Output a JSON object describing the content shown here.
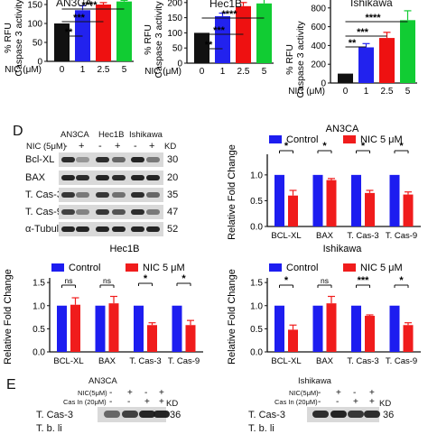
{
  "colors": {
    "ctrl": "#1d1df0",
    "nic5": "#f01c1c",
    "nic0": "#111111",
    "nic1": "#2222ee",
    "nic25": "#ee1111",
    "nic5b": "#11cc33",
    "axis": "#111111",
    "blot_bg": "#d9d9d9",
    "band": "#1a1a1a"
  },
  "caspase_panels": {
    "ylabel_a": "% RFU",
    "ylabel_b": "Caspase 3 activity",
    "xlabel": "NIC (μM)",
    "categories": [
      "0",
      "1",
      "2.5",
      "5"
    ]
  },
  "panel_d": {
    "letter": "D"
  },
  "panel_e": {
    "letter": "E"
  },
  "blot_d": {
    "header_groups": [
      "AN3CA",
      "Hec1B",
      "Ishikawa"
    ],
    "nic_label": "NIC (5μM)",
    "lane_signs": [
      "-",
      "+",
      "-",
      "+",
      "-",
      "+"
    ],
    "kd_label": "KD",
    "proteins": [
      "Bcl-XL",
      "BAX",
      "T. Cas-3",
      "T. Cas-9",
      "α-Tubulin"
    ],
    "kd_values": [
      "30",
      "20",
      "35",
      "47",
      "52"
    ]
  },
  "fold_common": {
    "ylabel": "Relative Fold Change",
    "legend_control": "Control",
    "legend_nic": "NIC 5 μM",
    "xcats": [
      "BCL-XL",
      "BAX",
      "T. Cas-3",
      "T. Cas-9"
    ]
  },
  "blot_e": {
    "left_title": "AN3CA",
    "right_title": "Ishikawa",
    "row1_label": "NIC(5μM)",
    "row2_label": "Cas In (20μM)",
    "row1_signs": [
      "-",
      "+",
      "-",
      "+"
    ],
    "row2_signs": [
      "-",
      "-",
      "+",
      "+"
    ],
    "kd_label": "KD",
    "protein": "T. Cas-3",
    "kd_value": "36",
    "protein_cut": "T. b. li"
  },
  "chart_data": [
    {
      "type": "bar",
      "title": "AN3CA",
      "xlabel": "NIC (μM)",
      "ylabel": "% RFU Caspase 3 activity",
      "categories": [
        "0",
        "1",
        "2.5",
        "5"
      ],
      "values": [
        100,
        135,
        150,
        158
      ],
      "errors": [
        0,
        12,
        5,
        3
      ],
      "ylim": [
        0,
        200
      ],
      "yticks_visible": [
        "0",
        "50",
        "100",
        "150"
      ],
      "significance": [
        "**",
        "***",
        "****"
      ]
    },
    {
      "type": "bar",
      "title": "Hec1B",
      "xlabel": "NIC (μM)",
      "ylabel": "% RFU Caspase 3 activity",
      "categories": [
        "0",
        "1",
        "2.5",
        "5"
      ],
      "values": [
        100,
        155,
        188,
        197
      ],
      "errors": [
        0,
        10,
        12,
        20
      ],
      "ylim": [
        0,
        250
      ],
      "yticks_visible": [
        "0",
        "50",
        "100",
        "150",
        "200"
      ],
      "significance": [
        "**",
        "***",
        "****"
      ]
    },
    {
      "type": "bar",
      "title": "Ishikawa",
      "xlabel": "NIC (μM)",
      "ylabel": "% RFU Caspase 3 activity",
      "categories": [
        "0",
        "1",
        "2.5",
        "5"
      ],
      "values": [
        100,
        380,
        480,
        670
      ],
      "errors": [
        0,
        40,
        60,
        100
      ],
      "ylim": [
        0,
        1000
      ],
      "yticks_visible": [
        "0",
        "200",
        "400",
        "600",
        "800"
      ],
      "significance": [
        "**",
        "***",
        "****"
      ]
    },
    {
      "type": "bar",
      "title": "AN3CA",
      "ylabel": "Relative Fold Change",
      "categories": [
        "BCL-XL",
        "BAX",
        "T. Cas-3",
        "T. Cas-9"
      ],
      "series": [
        {
          "name": "Control",
          "values": [
            1,
            1,
            1,
            1
          ],
          "errors": [
            0,
            0,
            0,
            0
          ]
        },
        {
          "name": "NIC 5 μM",
          "values": [
            0.6,
            0.9,
            0.65,
            0.62
          ],
          "errors": [
            0.1,
            0.03,
            0.05,
            0.05
          ]
        }
      ],
      "ylim": [
        0,
        1.4
      ],
      "yticks": [
        "0.0",
        "0.5",
        "1.0"
      ],
      "significance": [
        "*",
        "*",
        "*",
        "*"
      ]
    },
    {
      "type": "bar",
      "title": "Hec1B",
      "ylabel": "Relative Fold Change",
      "categories": [
        "BCL-XL",
        "BAX",
        "T. Cas-3",
        "T. Cas-9"
      ],
      "series": [
        {
          "name": "Control",
          "values": [
            1,
            1,
            1,
            1
          ],
          "errors": [
            0,
            0,
            0,
            0
          ]
        },
        {
          "name": "NIC 5 μM",
          "values": [
            1.02,
            1.05,
            0.58,
            0.58
          ],
          "errors": [
            0.15,
            0.15,
            0.05,
            0.1
          ]
        }
      ],
      "ylim": [
        0,
        1.6
      ],
      "yticks": [
        "0.0",
        "0.5",
        "1.0",
        "1.5"
      ],
      "significance": [
        "ns",
        "ns",
        "*",
        "*"
      ]
    },
    {
      "type": "bar",
      "title": "Ishikawa",
      "ylabel": "Relative Fold Change",
      "categories": [
        "BCL-XL",
        "BAX",
        "T. Cas-3",
        "T. Cas-9"
      ],
      "series": [
        {
          "name": "Control",
          "values": [
            1,
            1,
            1,
            1
          ],
          "errors": [
            0,
            0,
            0,
            0
          ]
        },
        {
          "name": "NIC 5 μM",
          "values": [
            0.48,
            1.05,
            0.78,
            0.58
          ],
          "errors": [
            0.1,
            0.15,
            0.02,
            0.05
          ]
        }
      ],
      "ylim": [
        0,
        1.6
      ],
      "yticks": [
        "0.0",
        "0.5",
        "1.0",
        "1.5"
      ],
      "significance": [
        "*",
        "ns",
        "***",
        "*"
      ]
    }
  ]
}
